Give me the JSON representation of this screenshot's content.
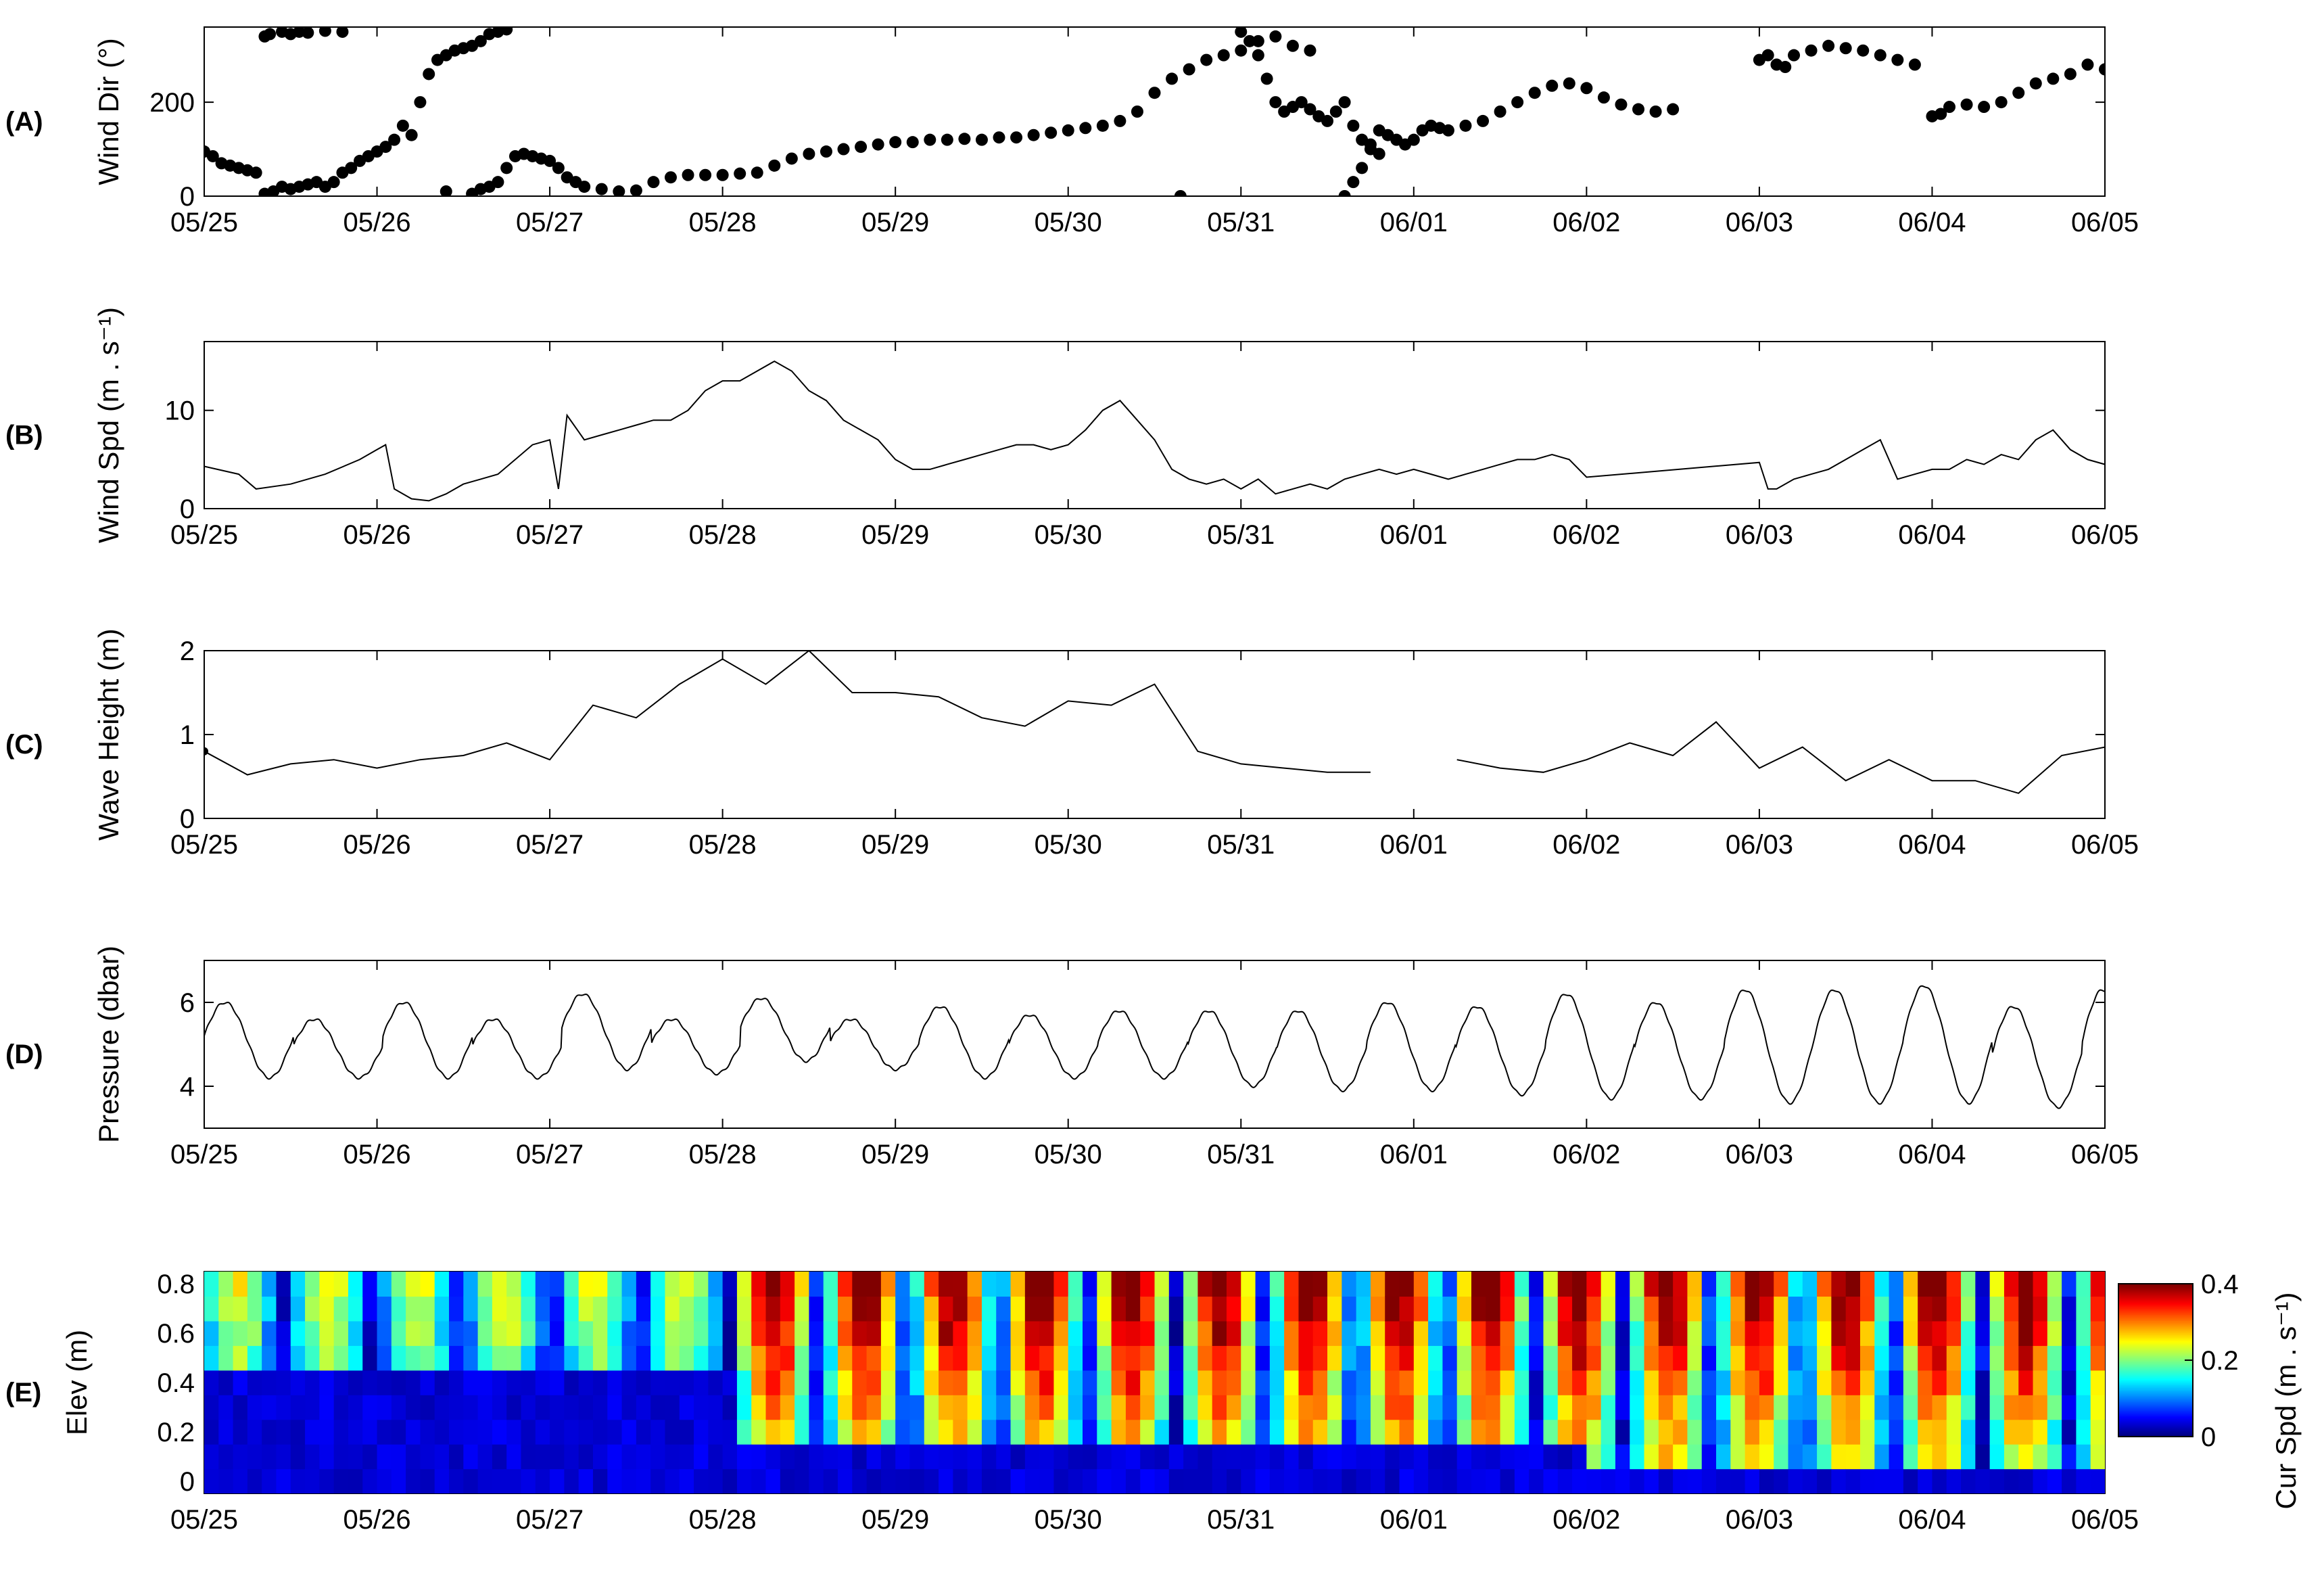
{
  "figure": {
    "date_ticks": [
      "05/25",
      "05/26",
      "05/27",
      "05/28",
      "05/29",
      "05/30",
      "05/31",
      "06/01",
      "06/02",
      "06/03",
      "06/04",
      "06/05"
    ]
  },
  "chart_data": [
    {
      "panel": "(A)",
      "type": "scatter",
      "ylabel": "Wind Dir (°)",
      "ylim": [
        0,
        360
      ],
      "yticks": [
        0,
        200
      ],
      "xlim_days": [
        0,
        11
      ],
      "x_axis": "date (MM/DD), 05/25 to 06/05",
      "points": [
        [
          0,
          95
        ],
        [
          0.05,
          85
        ],
        [
          0.1,
          70
        ],
        [
          0.15,
          65
        ],
        [
          0.2,
          60
        ],
        [
          0.25,
          55
        ],
        [
          0.3,
          50
        ],
        [
          0.35,
          340
        ],
        [
          0.38,
          345
        ],
        [
          0.45,
          350
        ],
        [
          0.5,
          345
        ],
        [
          0.55,
          350
        ],
        [
          0.6,
          348
        ],
        [
          0.7,
          352
        ],
        [
          0.8,
          350
        ],
        [
          0.35,
          5
        ],
        [
          0.4,
          10
        ],
        [
          0.45,
          20
        ],
        [
          0.5,
          15
        ],
        [
          0.55,
          20
        ],
        [
          0.6,
          25
        ],
        [
          0.65,
          30
        ],
        [
          0.7,
          20
        ],
        [
          0.75,
          30
        ],
        [
          0.8,
          50
        ],
        [
          0.85,
          60
        ],
        [
          0.9,
          75
        ],
        [
          0.95,
          85
        ],
        [
          1.0,
          95
        ],
        [
          1.05,
          105
        ],
        [
          1.1,
          120
        ],
        [
          1.15,
          150
        ],
        [
          1.2,
          130
        ],
        [
          1.25,
          200
        ],
        [
          1.3,
          260
        ],
        [
          1.35,
          290
        ],
        [
          1.4,
          300
        ],
        [
          1.45,
          310
        ],
        [
          1.5,
          315
        ],
        [
          1.55,
          320
        ],
        [
          1.6,
          330
        ],
        [
          1.65,
          345
        ],
        [
          1.7,
          350
        ],
        [
          1.75,
          355
        ],
        [
          1.4,
          10
        ],
        [
          1.55,
          5
        ],
        [
          1.6,
          15
        ],
        [
          1.65,
          20
        ],
        [
          1.7,
          30
        ],
        [
          1.75,
          60
        ],
        [
          1.8,
          85
        ],
        [
          1.85,
          90
        ],
        [
          1.9,
          85
        ],
        [
          1.95,
          80
        ],
        [
          2.0,
          75
        ],
        [
          2.05,
          60
        ],
        [
          2.1,
          40
        ],
        [
          2.15,
          30
        ],
        [
          2.2,
          20
        ],
        [
          2.3,
          15
        ],
        [
          2.4,
          10
        ],
        [
          2.5,
          12
        ],
        [
          2.6,
          30
        ],
        [
          2.7,
          40
        ],
        [
          2.8,
          45
        ],
        [
          2.9,
          45
        ],
        [
          3.0,
          45
        ],
        [
          3.1,
          48
        ],
        [
          3.2,
          50
        ],
        [
          3.3,
          65
        ],
        [
          3.4,
          80
        ],
        [
          3.5,
          90
        ],
        [
          3.6,
          95
        ],
        [
          3.7,
          100
        ],
        [
          3.8,
          105
        ],
        [
          3.9,
          110
        ],
        [
          4.0,
          115
        ],
        [
          4.1,
          115
        ],
        [
          4.2,
          120
        ],
        [
          4.3,
          120
        ],
        [
          4.4,
          122
        ],
        [
          4.5,
          120
        ],
        [
          4.6,
          125
        ],
        [
          4.7,
          125
        ],
        [
          4.8,
          130
        ],
        [
          4.9,
          135
        ],
        [
          5.0,
          140
        ],
        [
          5.1,
          145
        ],
        [
          5.2,
          150
        ],
        [
          5.3,
          160
        ],
        [
          5.4,
          180
        ],
        [
          5.5,
          220
        ],
        [
          5.6,
          250
        ],
        [
          5.7,
          270
        ],
        [
          5.8,
          290
        ],
        [
          5.9,
          300
        ],
        [
          6.0,
          310
        ],
        [
          6.1,
          330
        ],
        [
          6.2,
          340
        ],
        [
          6.3,
          320
        ],
        [
          6.4,
          310
        ],
        [
          5.65,
          0
        ],
        [
          6.0,
          350
        ],
        [
          6.05,
          330
        ],
        [
          6.1,
          300
        ],
        [
          6.15,
          250
        ],
        [
          6.2,
          200
        ],
        [
          6.25,
          180
        ],
        [
          6.3,
          190
        ],
        [
          6.35,
          200
        ],
        [
          6.4,
          185
        ],
        [
          6.45,
          170
        ],
        [
          6.5,
          160
        ],
        [
          6.55,
          180
        ],
        [
          6.6,
          200
        ],
        [
          6.65,
          150
        ],
        [
          6.7,
          120
        ],
        [
          6.75,
          100
        ],
        [
          6.8,
          90
        ],
        [
          6.6,
          0
        ],
        [
          6.65,
          30
        ],
        [
          6.7,
          60
        ],
        [
          6.75,
          110
        ],
        [
          6.8,
          140
        ],
        [
          6.85,
          130
        ],
        [
          6.9,
          120
        ],
        [
          6.95,
          110
        ],
        [
          7.0,
          120
        ],
        [
          7.05,
          140
        ],
        [
          7.1,
          150
        ],
        [
          7.15,
          145
        ],
        [
          7.2,
          140
        ],
        [
          7.3,
          150
        ],
        [
          7.4,
          160
        ],
        [
          7.5,
          180
        ],
        [
          7.6,
          200
        ],
        [
          7.7,
          220
        ],
        [
          7.8,
          235
        ],
        [
          7.9,
          240
        ],
        [
          8.0,
          230
        ],
        [
          8.1,
          210
        ],
        [
          8.2,
          195
        ],
        [
          8.3,
          185
        ],
        [
          8.4,
          180
        ],
        [
          8.5,
          185
        ],
        [
          9.0,
          290
        ],
        [
          9.05,
          300
        ],
        [
          9.1,
          280
        ],
        [
          9.15,
          275
        ],
        [
          9.2,
          300
        ],
        [
          9.3,
          310
        ],
        [
          9.4,
          320
        ],
        [
          9.5,
          315
        ],
        [
          9.6,
          310
        ],
        [
          9.7,
          300
        ],
        [
          9.8,
          290
        ],
        [
          9.9,
          280
        ],
        [
          10.0,
          170
        ],
        [
          10.05,
          175
        ],
        [
          10.1,
          190
        ],
        [
          10.2,
          195
        ],
        [
          10.3,
          190
        ],
        [
          10.4,
          200
        ],
        [
          10.5,
          220
        ],
        [
          10.6,
          240
        ],
        [
          10.7,
          250
        ],
        [
          10.8,
          260
        ],
        [
          10.9,
          280
        ],
        [
          11.0,
          270
        ],
        [
          11.05,
          300
        ],
        [
          11.1,
          320
        ],
        [
          11.15,
          290
        ],
        [
          11.2,
          260
        ],
        [
          11.25,
          230
        ],
        [
          11.3,
          240
        ],
        [
          11.35,
          250
        ],
        [
          11.4,
          280
        ],
        [
          11.45,
          300
        ]
      ]
    },
    {
      "panel": "(B)",
      "type": "line",
      "ylabel": "Wind Spd (m . s⁻¹)",
      "ylim": [
        0,
        17
      ],
      "yticks": [
        0,
        10
      ],
      "xlim_days": [
        0,
        11
      ],
      "x_axis": "date (MM/DD), 05/25 to 06/05",
      "points": [
        [
          0,
          4.3
        ],
        [
          0.2,
          3.5
        ],
        [
          0.3,
          2
        ],
        [
          0.5,
          2.5
        ],
        [
          0.7,
          3.5
        ],
        [
          0.9,
          5
        ],
        [
          1.0,
          6
        ],
        [
          1.05,
          6.5
        ],
        [
          1.1,
          2
        ],
        [
          1.2,
          1
        ],
        [
          1.3,
          0.8
        ],
        [
          1.4,
          1.5
        ],
        [
          1.5,
          2.5
        ],
        [
          1.6,
          3
        ],
        [
          1.7,
          3.5
        ],
        [
          1.8,
          5
        ],
        [
          1.9,
          6.5
        ],
        [
          2.0,
          7
        ],
        [
          2.05,
          2
        ],
        [
          2.1,
          9.5
        ],
        [
          2.2,
          7
        ],
        [
          2.3,
          7.5
        ],
        [
          2.4,
          8
        ],
        [
          2.5,
          8.5
        ],
        [
          2.6,
          9
        ],
        [
          2.7,
          9
        ],
        [
          2.8,
          10
        ],
        [
          2.9,
          12
        ],
        [
          3.0,
          13
        ],
        [
          3.1,
          13
        ],
        [
          3.2,
          14
        ],
        [
          3.3,
          15
        ],
        [
          3.4,
          14
        ],
        [
          3.5,
          12
        ],
        [
          3.6,
          11
        ],
        [
          3.7,
          9
        ],
        [
          3.8,
          8
        ],
        [
          3.9,
          7
        ],
        [
          4.0,
          5
        ],
        [
          4.1,
          4
        ],
        [
          4.2,
          4
        ],
        [
          4.3,
          4.5
        ],
        [
          4.4,
          5
        ],
        [
          4.5,
          5.5
        ],
        [
          4.6,
          6
        ],
        [
          4.7,
          6.5
        ],
        [
          4.8,
          6.5
        ],
        [
          4.9,
          6
        ],
        [
          5.0,
          6.5
        ],
        [
          5.1,
          8
        ],
        [
          5.2,
          10
        ],
        [
          5.3,
          11
        ],
        [
          5.4,
          9
        ],
        [
          5.5,
          7
        ],
        [
          5.6,
          4
        ],
        [
          5.7,
          3
        ],
        [
          5.8,
          2.5
        ],
        [
          5.9,
          3
        ],
        [
          6.0,
          2
        ],
        [
          6.1,
          3
        ],
        [
          6.2,
          1.5
        ],
        [
          6.3,
          2
        ],
        [
          6.4,
          2.5
        ],
        [
          6.5,
          2
        ],
        [
          6.6,
          3
        ],
        [
          6.7,
          3.5
        ],
        [
          6.8,
          4
        ],
        [
          6.9,
          3.5
        ],
        [
          7.0,
          4
        ],
        [
          7.1,
          3.5
        ],
        [
          7.2,
          3
        ],
        [
          7.3,
          3.5
        ],
        [
          7.4,
          4
        ],
        [
          7.5,
          4.5
        ],
        [
          7.6,
          5
        ],
        [
          7.7,
          5
        ],
        [
          7.8,
          5.5
        ],
        [
          7.9,
          5
        ],
        [
          8.0,
          3.2
        ],
        [
          9.0,
          4.7
        ],
        [
          9.05,
          2
        ],
        [
          9.1,
          2
        ],
        [
          9.2,
          3
        ],
        [
          9.3,
          3.5
        ],
        [
          9.4,
          4
        ],
        [
          9.5,
          5
        ],
        [
          9.6,
          6
        ],
        [
          9.7,
          7
        ],
        [
          9.8,
          3
        ],
        [
          9.9,
          3.5
        ],
        [
          10.0,
          4
        ],
        [
          10.1,
          4
        ],
        [
          10.2,
          5
        ],
        [
          10.3,
          4.5
        ],
        [
          10.4,
          5.5
        ],
        [
          10.5,
          5
        ],
        [
          10.6,
          7
        ],
        [
          10.7,
          8
        ],
        [
          10.8,
          6
        ],
        [
          10.9,
          5
        ],
        [
          11.0,
          4.5
        ]
      ]
    },
    {
      "panel": "(C)",
      "type": "line",
      "ylabel": "Wave Height (m)",
      "ylim": [
        0,
        2
      ],
      "yticks": [
        0,
        1,
        2
      ],
      "xlim_days": [
        0,
        11
      ],
      "x_axis": "date (MM/DD), 05/25 to 06/05",
      "points": [
        [
          0,
          0.8
        ],
        [
          0.25,
          0.52
        ],
        [
          0.5,
          0.65
        ],
        [
          0.75,
          0.7
        ],
        [
          1.0,
          0.6
        ],
        [
          1.25,
          0.7
        ],
        [
          1.5,
          0.75
        ],
        [
          1.75,
          0.9
        ],
        [
          2.0,
          0.7
        ],
        [
          2.25,
          1.35
        ],
        [
          2.5,
          1.2
        ],
        [
          2.75,
          1.6
        ],
        [
          3.0,
          1.9
        ],
        [
          3.25,
          1.6
        ],
        [
          3.5,
          2.0
        ],
        [
          3.75,
          1.5
        ],
        [
          4.0,
          1.5
        ],
        [
          4.25,
          1.45
        ],
        [
          4.5,
          1.2
        ],
        [
          4.75,
          1.1
        ],
        [
          5.0,
          1.4
        ],
        [
          5.25,
          1.35
        ],
        [
          5.5,
          1.6
        ],
        [
          5.75,
          0.8
        ],
        [
          6.0,
          0.65
        ],
        [
          6.25,
          0.6
        ],
        [
          6.5,
          0.55
        ],
        [
          6.75,
          0.55
        ],
        [
          7.0,
          null
        ],
        [
          7.25,
          0.7
        ],
        [
          7.5,
          0.6
        ],
        [
          7.75,
          0.55
        ],
        [
          8.0,
          0.7
        ],
        [
          8.25,
          0.9
        ],
        [
          8.5,
          0.75
        ],
        [
          8.75,
          1.15
        ],
        [
          9.0,
          0.6
        ],
        [
          9.25,
          0.85
        ],
        [
          9.5,
          0.45
        ],
        [
          9.75,
          0.7
        ],
        [
          10.0,
          0.45
        ],
        [
          10.25,
          0.45
        ],
        [
          10.5,
          0.3
        ],
        [
          10.75,
          0.75
        ],
        [
          11.0,
          0.85
        ]
      ]
    },
    {
      "panel": "(D)",
      "type": "line",
      "ylabel": "Pressure (dbar)",
      "ylim": [
        3,
        7
      ],
      "yticks": [
        4,
        6
      ],
      "xlim_days": [
        0,
        11
      ],
      "x_axis": "date (MM/DD), 05/25 to 06/05",
      "tidal_series": {
        "period_days": 0.5175,
        "crests": [
          6.0,
          5.6,
          6.0,
          5.6,
          6.2,
          5.6,
          6.1,
          5.6,
          5.9,
          5.7,
          5.8,
          5.8,
          5.8,
          6.0,
          5.9,
          6.2,
          6.0,
          6.3,
          6.3,
          6.4,
          5.9,
          6.3
        ],
        "troughs": [
          4.2,
          4.2,
          4.2,
          4.2,
          4.4,
          4.3,
          4.6,
          4.4,
          4.2,
          4.2,
          4.2,
          4.0,
          3.9,
          3.9,
          3.8,
          3.7,
          3.7,
          3.6,
          3.6,
          3.6,
          3.5,
          3.5
        ]
      }
    },
    {
      "panel": "(E)",
      "type": "heatmap",
      "ylabel": "Elev (m)",
      "ylim": [
        -0.05,
        0.85
      ],
      "yticks": [
        0,
        0.2,
        0.4,
        0.6,
        0.8
      ],
      "xlim_days": [
        0,
        11
      ],
      "x_axis": "date (MM/DD), 05/25 to 06/05",
      "colorbar": {
        "label": "Cur Spd (m . s⁻¹)",
        "range": [
          0,
          0.4
        ],
        "ticks": [
          0,
          0.2,
          0.4
        ],
        "colormap": "jet"
      },
      "bins_m": [
        0,
        0.1,
        0.2,
        0.3,
        0.4,
        0.5,
        0.6,
        0.7,
        0.8
      ],
      "columns_per_day": 12,
      "description": "current speed by elevation bin; near zero below ~0.45 m until 05/28, strong tidal-cycle banding above 0.2 m thereafter"
    }
  ]
}
